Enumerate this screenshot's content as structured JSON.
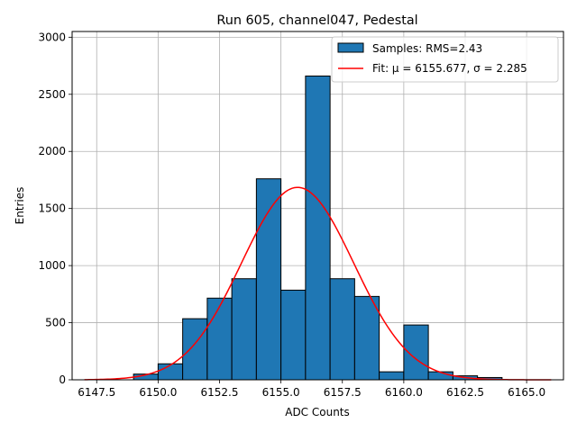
{
  "chart_data": {
    "type": "bar",
    "title": "Run 605, channel047, Pedestal",
    "xlabel": "ADC Counts",
    "ylabel": "Entries",
    "xlim": [
      6146.5,
      6166.5
    ],
    "ylim": [
      0,
      3050
    ],
    "grid": true,
    "legend_position": "top-right",
    "x_ticks": [
      {
        "value": 6147.5,
        "label": "6147.5"
      },
      {
        "value": 6150.0,
        "label": "6150.0"
      },
      {
        "value": 6152.5,
        "label": "6152.5"
      },
      {
        "value": 6155.0,
        "label": "6155.0"
      },
      {
        "value": 6157.5,
        "label": "6157.5"
      },
      {
        "value": 6160.0,
        "label": "6160.0"
      },
      {
        "value": 6162.5,
        "label": "6162.5"
      },
      {
        "value": 6165.0,
        "label": "6165.0"
      }
    ],
    "y_ticks": [
      {
        "value": 0,
        "label": "0"
      },
      {
        "value": 500,
        "label": "500"
      },
      {
        "value": 1000,
        "label": "1000"
      },
      {
        "value": 1500,
        "label": "1500"
      },
      {
        "value": 2000,
        "label": "2000"
      },
      {
        "value": 2500,
        "label": "2500"
      },
      {
        "value": 3000,
        "label": "3000"
      }
    ],
    "histogram": {
      "name": "Samples: RMS=2.43",
      "color": "#1f77b4",
      "edgecolor": "#000000",
      "bin_width": 1,
      "bins_start": [
        6147,
        6148,
        6149,
        6150,
        6151,
        6152,
        6153,
        6154,
        6155,
        6156,
        6157,
        6158,
        6159,
        6160,
        6161,
        6162,
        6163,
        6164,
        6165
      ],
      "values": [
        0,
        0,
        50,
        140,
        535,
        715,
        885,
        1760,
        785,
        2660,
        885,
        730,
        70,
        480,
        70,
        35,
        20,
        0,
        0
      ]
    },
    "fit": {
      "name": "Fit: μ = 6155.677, σ = 2.285",
      "color": "#ff0000",
      "mu": 6155.677,
      "sigma": 2.285,
      "amplitude": 1685,
      "x_range": [
        6147,
        6166
      ]
    }
  }
}
